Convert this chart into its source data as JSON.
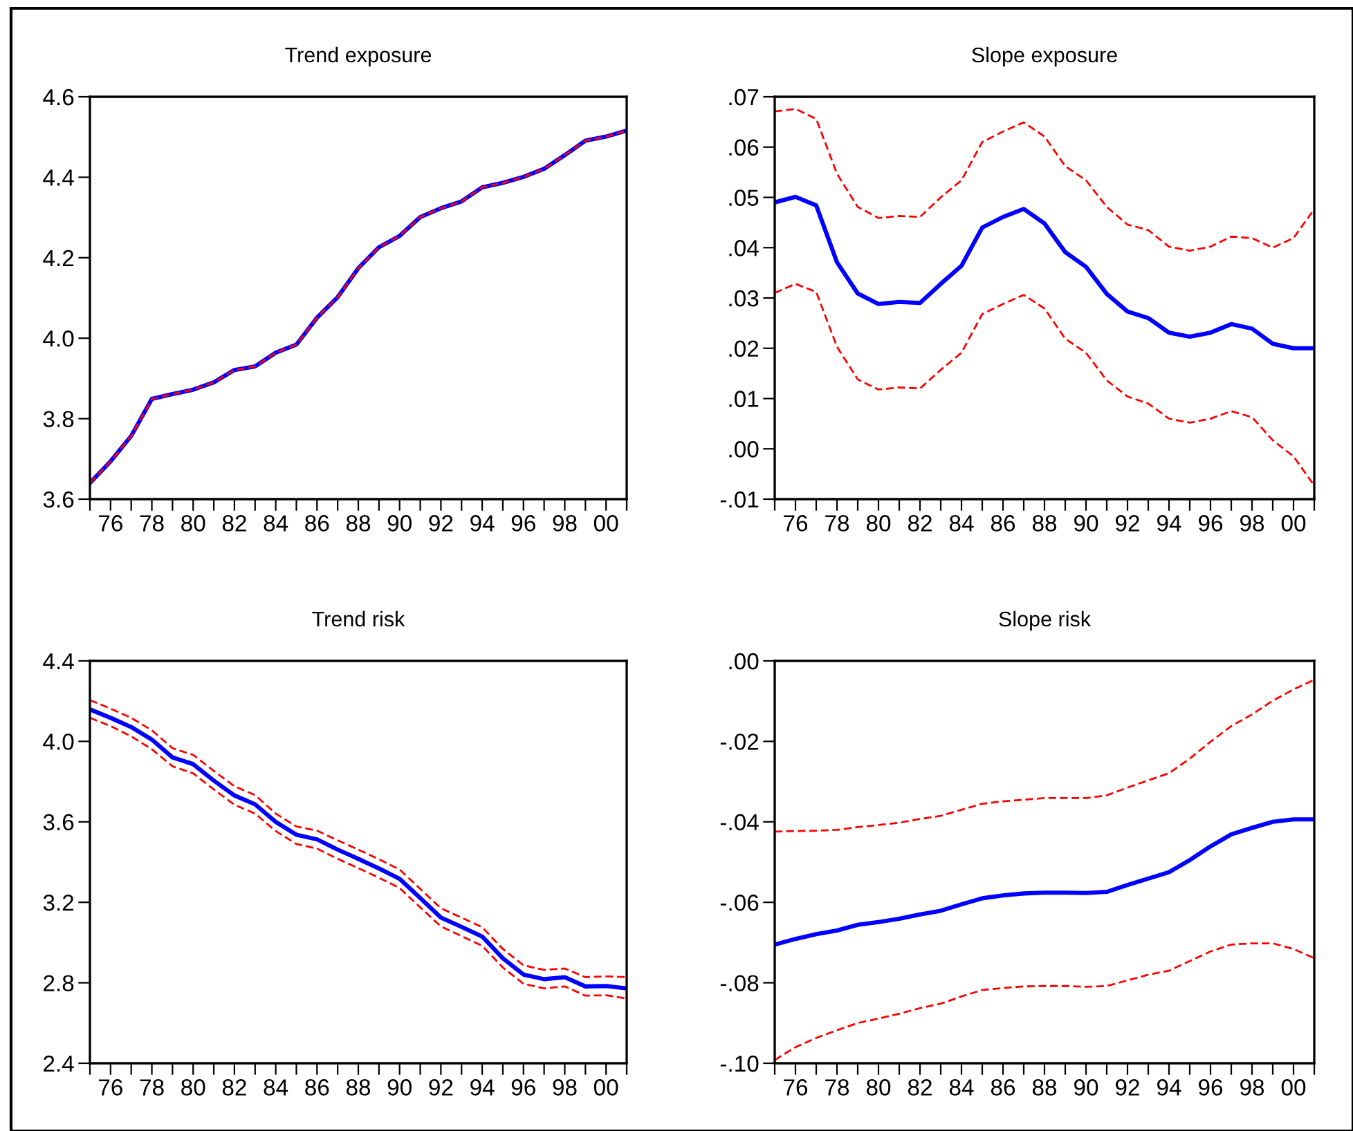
{
  "chart_data": [
    {
      "type": "line",
      "title": "Trend exposure",
      "x": [
        1975,
        1976,
        1977,
        1978,
        1979,
        1980,
        1981,
        1982,
        1983,
        1984,
        1985,
        1986,
        1987,
        1988,
        1989,
        1990,
        1991,
        1992,
        1993,
        1994,
        1995,
        1996,
        1997,
        1998,
        1999,
        2000,
        2001
      ],
      "xlim": [
        1975,
        2001
      ],
      "xticks": [
        {
          "value": 1975,
          "label": null
        },
        {
          "value": 1976,
          "label": "76"
        },
        {
          "value": 1977,
          "label": null
        },
        {
          "value": 1978,
          "label": "78"
        },
        {
          "value": 1979,
          "label": null
        },
        {
          "value": 1980,
          "label": "80"
        },
        {
          "value": 1981,
          "label": null
        },
        {
          "value": 1982,
          "label": "82"
        },
        {
          "value": 1983,
          "label": null
        },
        {
          "value": 1984,
          "label": "84"
        },
        {
          "value": 1985,
          "label": null
        },
        {
          "value": 1986,
          "label": "86"
        },
        {
          "value": 1987,
          "label": null
        },
        {
          "value": 1988,
          "label": "88"
        },
        {
          "value": 1989,
          "label": null
        },
        {
          "value": 1990,
          "label": "90"
        },
        {
          "value": 1991,
          "label": null
        },
        {
          "value": 1992,
          "label": "92"
        },
        {
          "value": 1993,
          "label": null
        },
        {
          "value": 1994,
          "label": "94"
        },
        {
          "value": 1995,
          "label": null
        },
        {
          "value": 1996,
          "label": "96"
        },
        {
          "value": 1997,
          "label": null
        },
        {
          "value": 1998,
          "label": "98"
        },
        {
          "value": 1999,
          "label": null
        },
        {
          "value": 2000,
          "label": "00"
        },
        {
          "value": 2001,
          "label": null
        }
      ],
      "ylim": [
        3.6,
        4.6
      ],
      "yticks": [
        {
          "value": 3.6,
          "label": "3.6"
        },
        {
          "value": 3.8,
          "label": "3.8"
        },
        {
          "value": 4.0,
          "label": "4.0"
        },
        {
          "value": 4.2,
          "label": "4.2"
        },
        {
          "value": 4.4,
          "label": "4.4"
        },
        {
          "value": 4.6,
          "label": "4.6"
        }
      ],
      "grid": false,
      "legend": false,
      "series": [
        {
          "color": "#0000ff",
          "line_style": "solid",
          "values": [
            3.64,
            3.694,
            3.757,
            3.849,
            3.861,
            3.872,
            3.89,
            3.921,
            3.93,
            3.964,
            3.984,
            4.051,
            4.102,
            4.174,
            4.226,
            4.254,
            4.301,
            4.323,
            4.34,
            4.375,
            4.386,
            4.401,
            4.421,
            4.455,
            4.491,
            4.501,
            4.516
          ]
        },
        {
          "color": "#ff0000",
          "line_style": "dashed",
          "values": [
            3.64,
            3.694,
            3.757,
            3.849,
            3.861,
            3.872,
            3.89,
            3.921,
            3.93,
            3.964,
            3.984,
            4.051,
            4.102,
            4.174,
            4.226,
            4.254,
            4.301,
            4.323,
            4.34,
            4.375,
            4.386,
            4.401,
            4.421,
            4.455,
            4.491,
            4.501,
            4.516
          ]
        }
      ]
    },
    {
      "type": "line",
      "title": "Slope exposure",
      "x": [
        1975,
        1976,
        1977,
        1978,
        1979,
        1980,
        1981,
        1982,
        1983,
        1984,
        1985,
        1986,
        1987,
        1988,
        1989,
        1990,
        1991,
        1992,
        1993,
        1994,
        1995,
        1996,
        1997,
        1998,
        1999,
        2000,
        2001
      ],
      "xlim": [
        1975,
        2001
      ],
      "xticks": [
        {
          "value": 1975,
          "label": null
        },
        {
          "value": 1976,
          "label": "76"
        },
        {
          "value": 1977,
          "label": null
        },
        {
          "value": 1978,
          "label": "78"
        },
        {
          "value": 1979,
          "label": null
        },
        {
          "value": 1980,
          "label": "80"
        },
        {
          "value": 1981,
          "label": null
        },
        {
          "value": 1982,
          "label": "82"
        },
        {
          "value": 1983,
          "label": null
        },
        {
          "value": 1984,
          "label": "84"
        },
        {
          "value": 1985,
          "label": null
        },
        {
          "value": 1986,
          "label": "86"
        },
        {
          "value": 1987,
          "label": null
        },
        {
          "value": 1988,
          "label": "88"
        },
        {
          "value": 1989,
          "label": null
        },
        {
          "value": 1990,
          "label": "90"
        },
        {
          "value": 1991,
          "label": null
        },
        {
          "value": 1992,
          "label": "92"
        },
        {
          "value": 1993,
          "label": null
        },
        {
          "value": 1994,
          "label": "94"
        },
        {
          "value": 1995,
          "label": null
        },
        {
          "value": 1996,
          "label": "96"
        },
        {
          "value": 1997,
          "label": null
        },
        {
          "value": 1998,
          "label": "98"
        },
        {
          "value": 1999,
          "label": null
        },
        {
          "value": 2000,
          "label": "00"
        },
        {
          "value": 2001,
          "label": null
        }
      ],
      "ylim": [
        -0.01,
        0.07
      ],
      "yticks": [
        {
          "value": -0.01,
          "label": "-.01"
        },
        {
          "value": 0.0,
          "label": ".00"
        },
        {
          "value": 0.01,
          "label": ".01"
        },
        {
          "value": 0.02,
          "label": ".02"
        },
        {
          "value": 0.03,
          "label": ".03"
        },
        {
          "value": 0.04,
          "label": ".04"
        },
        {
          "value": 0.05,
          "label": ".05"
        },
        {
          "value": 0.06,
          "label": ".06"
        },
        {
          "value": 0.07,
          "label": ".07"
        }
      ],
      "grid": false,
      "legend": false,
      "series": [
        {
          "color": "#0000ff",
          "line_style": "solid",
          "values": [
            0.049,
            0.0501,
            0.0484,
            0.0371,
            0.0309,
            0.0288,
            0.0292,
            0.029,
            0.0328,
            0.0364,
            0.044,
            0.0461,
            0.0477,
            0.0448,
            0.0391,
            0.0362,
            0.0308,
            0.0273,
            0.026,
            0.0231,
            0.0223,
            0.0231,
            0.0248,
            0.0239,
            0.0209,
            0.02,
            0.02
          ]
        },
        {
          "color": "#ff0000",
          "line_style": "dashed",
          "values": [
            0.0671,
            0.0676,
            0.0656,
            0.0547,
            0.0481,
            0.0459,
            0.0463,
            0.0461,
            0.05,
            0.0534,
            0.061,
            0.0631,
            0.0649,
            0.0621,
            0.0562,
            0.0534,
            0.0481,
            0.0446,
            0.0435,
            0.0402,
            0.0394,
            0.0402,
            0.0422,
            0.0419,
            0.04,
            0.0419,
            0.0477
          ]
        },
        {
          "color": "#ff0000",
          "line_style": "dashed",
          "values": [
            0.031,
            0.0328,
            0.0312,
            0.0203,
            0.0138,
            0.0118,
            0.0122,
            0.012,
            0.0157,
            0.0191,
            0.0268,
            0.0288,
            0.0306,
            0.0279,
            0.0219,
            0.0191,
            0.0136,
            0.0104,
            0.009,
            0.006,
            0.0052,
            0.006,
            0.0075,
            0.0063,
            0.0017,
            -0.0015,
            -0.0073
          ]
        }
      ]
    },
    {
      "type": "line",
      "title": "Trend risk",
      "x": [
        1975,
        1976,
        1977,
        1978,
        1979,
        1980,
        1981,
        1982,
        1983,
        1984,
        1985,
        1986,
        1987,
        1988,
        1989,
        1990,
        1991,
        1992,
        1993,
        1994,
        1995,
        1996,
        1997,
        1998,
        1999,
        2000,
        2001
      ],
      "xlim": [
        1975,
        2001
      ],
      "xticks": [
        {
          "value": 1975,
          "label": null
        },
        {
          "value": 1976,
          "label": "76"
        },
        {
          "value": 1977,
          "label": null
        },
        {
          "value": 1978,
          "label": "78"
        },
        {
          "value": 1979,
          "label": null
        },
        {
          "value": 1980,
          "label": "80"
        },
        {
          "value": 1981,
          "label": null
        },
        {
          "value": 1982,
          "label": "82"
        },
        {
          "value": 1983,
          "label": null
        },
        {
          "value": 1984,
          "label": "84"
        },
        {
          "value": 1985,
          "label": null
        },
        {
          "value": 1986,
          "label": "86"
        },
        {
          "value": 1987,
          "label": null
        },
        {
          "value": 1988,
          "label": "88"
        },
        {
          "value": 1989,
          "label": null
        },
        {
          "value": 1990,
          "label": "90"
        },
        {
          "value": 1991,
          "label": null
        },
        {
          "value": 1992,
          "label": "92"
        },
        {
          "value": 1993,
          "label": null
        },
        {
          "value": 1994,
          "label": "94"
        },
        {
          "value": 1995,
          "label": null
        },
        {
          "value": 1996,
          "label": "96"
        },
        {
          "value": 1997,
          "label": null
        },
        {
          "value": 1998,
          "label": "98"
        },
        {
          "value": 1999,
          "label": null
        },
        {
          "value": 2000,
          "label": "00"
        },
        {
          "value": 2001,
          "label": null
        }
      ],
      "ylim": [
        2.4,
        4.4
      ],
      "yticks": [
        {
          "value": 2.4,
          "label": "2.4"
        },
        {
          "value": 2.8,
          "label": "2.8"
        },
        {
          "value": 3.2,
          "label": "3.2"
        },
        {
          "value": 3.6,
          "label": "3.6"
        },
        {
          "value": 4.0,
          "label": "4.0"
        },
        {
          "value": 4.4,
          "label": "4.4"
        }
      ],
      "grid": false,
      "legend": false,
      "series": [
        {
          "color": "#0000ff",
          "line_style": "solid",
          "values": [
            4.159,
            4.117,
            4.071,
            4.009,
            3.92,
            3.887,
            3.805,
            3.731,
            3.687,
            3.6,
            3.536,
            3.513,
            3.462,
            3.416,
            3.368,
            3.317,
            3.221,
            3.124,
            3.078,
            3.03,
            2.922,
            2.841,
            2.818,
            2.828,
            2.782,
            2.784,
            2.772
          ]
        },
        {
          "color": "#ff0000",
          "line_style": "dashed",
          "values": [
            4.205,
            4.163,
            4.117,
            4.055,
            3.966,
            3.933,
            3.853,
            3.777,
            3.733,
            3.641,
            3.577,
            3.556,
            3.508,
            3.462,
            3.414,
            3.363,
            3.267,
            3.17,
            3.124,
            3.076,
            2.968,
            2.887,
            2.864,
            2.871,
            2.828,
            2.832,
            2.828
          ]
        },
        {
          "color": "#ff0000",
          "line_style": "dashed",
          "values": [
            4.117,
            4.076,
            4.025,
            3.961,
            3.876,
            3.841,
            3.761,
            3.685,
            3.641,
            3.554,
            3.49,
            3.467,
            3.416,
            3.37,
            3.322,
            3.271,
            3.175,
            3.08,
            3.032,
            2.984,
            2.876,
            2.795,
            2.772,
            2.782,
            2.736,
            2.738,
            2.722
          ]
        }
      ]
    },
    {
      "type": "line",
      "title": "Slope risk",
      "x": [
        1975,
        1976,
        1977,
        1978,
        1979,
        1980,
        1981,
        1982,
        1983,
        1984,
        1985,
        1986,
        1987,
        1988,
        1989,
        1990,
        1991,
        1992,
        1993,
        1994,
        1995,
        1996,
        1997,
        1998,
        1999,
        2000,
        2001
      ],
      "xlim": [
        1975,
        2001
      ],
      "xticks": [
        {
          "value": 1975,
          "label": null
        },
        {
          "value": 1976,
          "label": "76"
        },
        {
          "value": 1977,
          "label": null
        },
        {
          "value": 1978,
          "label": "78"
        },
        {
          "value": 1979,
          "label": null
        },
        {
          "value": 1980,
          "label": "80"
        },
        {
          "value": 1981,
          "label": null
        },
        {
          "value": 1982,
          "label": "82"
        },
        {
          "value": 1983,
          "label": null
        },
        {
          "value": 1984,
          "label": "84"
        },
        {
          "value": 1985,
          "label": null
        },
        {
          "value": 1986,
          "label": "86"
        },
        {
          "value": 1987,
          "label": null
        },
        {
          "value": 1988,
          "label": "88"
        },
        {
          "value": 1989,
          "label": null
        },
        {
          "value": 1990,
          "label": "90"
        },
        {
          "value": 1991,
          "label": null
        },
        {
          "value": 1992,
          "label": "92"
        },
        {
          "value": 1993,
          "label": null
        },
        {
          "value": 1994,
          "label": "94"
        },
        {
          "value": 1995,
          "label": null
        },
        {
          "value": 1996,
          "label": "96"
        },
        {
          "value": 1997,
          "label": null
        },
        {
          "value": 1998,
          "label": "98"
        },
        {
          "value": 1999,
          "label": null
        },
        {
          "value": 2000,
          "label": "00"
        },
        {
          "value": 2001,
          "label": null
        }
      ],
      "ylim": [
        -0.1,
        0.0
      ],
      "yticks": [
        {
          "value": -0.1,
          "label": "-.10"
        },
        {
          "value": -0.08,
          "label": "-.08"
        },
        {
          "value": -0.06,
          "label": "-.06"
        },
        {
          "value": -0.04,
          "label": "-.04"
        },
        {
          "value": -0.02,
          "label": "-.02"
        },
        {
          "value": 0.0,
          "label": ".00"
        }
      ],
      "grid": false,
      "legend": false,
      "series": [
        {
          "color": "#0000ff",
          "line_style": "solid",
          "values": [
            -0.0705,
            -0.0691,
            -0.0679,
            -0.067,
            -0.0656,
            -0.0649,
            -0.0641,
            -0.063,
            -0.0621,
            -0.0605,
            -0.059,
            -0.0583,
            -0.0578,
            -0.0576,
            -0.0576,
            -0.0577,
            -0.0574,
            -0.0557,
            -0.0541,
            -0.0525,
            -0.0495,
            -0.0461,
            -0.0431,
            -0.0415,
            -0.04,
            -0.0394,
            -0.0394
          ]
        },
        {
          "color": "#ff0000",
          "line_style": "dashed",
          "values": [
            -0.0424,
            -0.0423,
            -0.0422,
            -0.042,
            -0.0413,
            -0.0408,
            -0.0402,
            -0.0393,
            -0.0385,
            -0.037,
            -0.0355,
            -0.0349,
            -0.0345,
            -0.0341,
            -0.0341,
            -0.0341,
            -0.0334,
            -0.0315,
            -0.0297,
            -0.0279,
            -0.0243,
            -0.0201,
            -0.0162,
            -0.0133,
            -0.0099,
            -0.0071,
            -0.0047
          ]
        },
        {
          "color": "#ff0000",
          "line_style": "dashed",
          "values": [
            -0.0992,
            -0.096,
            -0.0937,
            -0.0918,
            -0.09,
            -0.0889,
            -0.0877,
            -0.0863,
            -0.0852,
            -0.0834,
            -0.0818,
            -0.0813,
            -0.0809,
            -0.0808,
            -0.0808,
            -0.081,
            -0.0808,
            -0.0794,
            -0.078,
            -0.077,
            -0.0746,
            -0.0722,
            -0.0705,
            -0.0702,
            -0.0702,
            -0.0716,
            -0.0739
          ]
        }
      ]
    }
  ]
}
